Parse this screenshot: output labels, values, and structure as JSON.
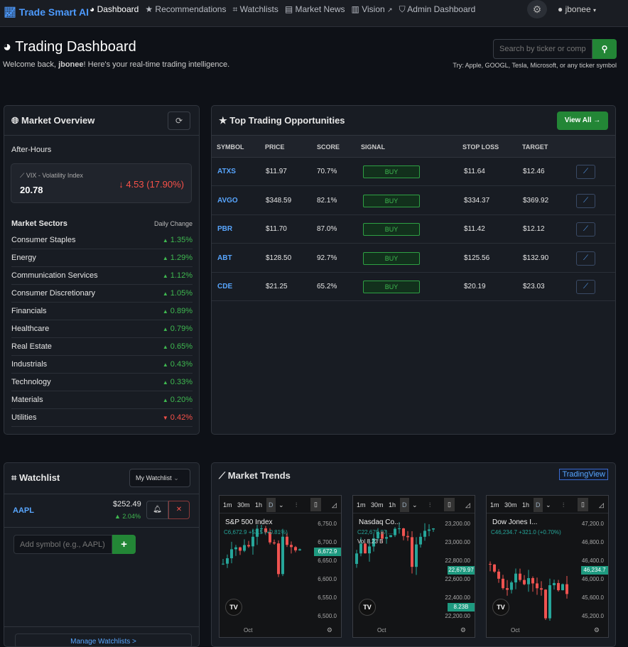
{
  "nav": {
    "brand": "Trade Smart AI",
    "items": [
      {
        "label": "Dashboard",
        "icon": "dashboard-icon"
      },
      {
        "label": "Recommendations",
        "icon": "star-icon"
      },
      {
        "label": "Watchlists",
        "icon": "binoculars-icon"
      },
      {
        "label": "Market News",
        "icon": "newspaper-icon"
      },
      {
        "label": "Vision",
        "icon": "map-icon"
      },
      {
        "label": "Admin Dashboard",
        "icon": "shield-icon"
      }
    ],
    "user": "jbonee"
  },
  "header": {
    "title": "Trading Dashboard",
    "welcome_pre": "Welcome back, ",
    "username": "jbonee",
    "welcome_post": "! Here's your real-time trading intelligence.",
    "search_placeholder": "Search by ticker or company",
    "hint": "Try: Apple, GOOGL, Tesla, Microsoft, or any ticker symbol"
  },
  "overview": {
    "title": "Market Overview",
    "session": "After-Hours",
    "vix_label": "VIX - Volatility Index",
    "vix_value": "20.78",
    "vix_change": "4.53 (17.90%)",
    "sectors_title": "Market Sectors",
    "daily_change": "Daily Change",
    "sectors": [
      {
        "name": "Consumer Staples",
        "chg": "1.35%",
        "up": true
      },
      {
        "name": "Energy",
        "chg": "1.29%",
        "up": true
      },
      {
        "name": "Communication Services",
        "chg": "1.12%",
        "up": true
      },
      {
        "name": "Consumer Discretionary",
        "chg": "1.05%",
        "up": true
      },
      {
        "name": "Financials",
        "chg": "0.89%",
        "up": true
      },
      {
        "name": "Healthcare",
        "chg": "0.79%",
        "up": true
      },
      {
        "name": "Real Estate",
        "chg": "0.65%",
        "up": true
      },
      {
        "name": "Industrials",
        "chg": "0.43%",
        "up": true
      },
      {
        "name": "Technology",
        "chg": "0.33%",
        "up": true
      },
      {
        "name": "Materials",
        "chg": "0.20%",
        "up": true
      },
      {
        "name": "Utilities",
        "chg": "0.42%",
        "up": false
      }
    ]
  },
  "opps": {
    "title": "Top Trading Opportunities",
    "view_all": "View All →",
    "columns": [
      "SYMBOL",
      "PRICE",
      "SCORE",
      "SIGNAL",
      "STOP LOSS",
      "TARGET"
    ],
    "rows": [
      {
        "symbol": "ATXS",
        "price": "$11.97",
        "score": "70.7%",
        "signal": "BUY",
        "stop": "$11.64",
        "target": "$12.46"
      },
      {
        "symbol": "AVGO",
        "price": "$348.59",
        "score": "82.1%",
        "signal": "BUY",
        "stop": "$334.37",
        "target": "$369.92"
      },
      {
        "symbol": "PBR",
        "price": "$11.70",
        "score": "87.0%",
        "signal": "BUY",
        "stop": "$11.42",
        "target": "$12.12"
      },
      {
        "symbol": "ABT",
        "price": "$128.50",
        "score": "92.7%",
        "signal": "BUY",
        "stop": "$125.56",
        "target": "$132.90"
      },
      {
        "symbol": "CDE",
        "price": "$21.25",
        "score": "65.2%",
        "signal": "BUY",
        "stop": "$20.19",
        "target": "$23.03"
      }
    ]
  },
  "watchlist": {
    "title": "Watchlist",
    "selected": "My Watchlist",
    "items": [
      {
        "symbol": "AAPL",
        "price": "$252.49",
        "change": "2.04%"
      }
    ],
    "add_placeholder": "Add symbol (e.g., AAPL)",
    "manage": "Manage Watchlists >"
  },
  "trends": {
    "title": "Market Trends",
    "link": "TradingView",
    "intervals": [
      "1m",
      "30m",
      "1h",
      "D"
    ],
    "x_label": "Oct",
    "charts": [
      {
        "name": "S&P 500 Index",
        "close": "C6,672.9 +53.5 (+0.81%)",
        "axis": [
          "6,750.0",
          "6,700.0",
          "6,650.0",
          "6,600.0",
          "6,550.0",
          "6,500.0"
        ],
        "last": "6,672.9"
      },
      {
        "name": "Nasdaq Co...",
        "close": "C22,679.97 ...",
        "vol": "Vol 8.23 B",
        "axis": [
          "23,200.00",
          "23,000.00",
          "22,800.00",
          "22,600.00",
          "22,400.00",
          "22,200.00"
        ],
        "last": "22,679.97",
        "vol_label": "8.23B"
      },
      {
        "name": "Dow Jones I...",
        "close": "C46,234.7 +321.0 (+0.70%)",
        "axis": [
          "47,200.0",
          "46,800.0",
          "46,400.0",
          "46,000.0",
          "45,600.0",
          "45,200.0"
        ],
        "last": "46,234.7"
      }
    ]
  },
  "colors": {
    "up": "#3fb950",
    "down": "#f85149",
    "accent": "#58a6ff",
    "button": "#238636"
  }
}
